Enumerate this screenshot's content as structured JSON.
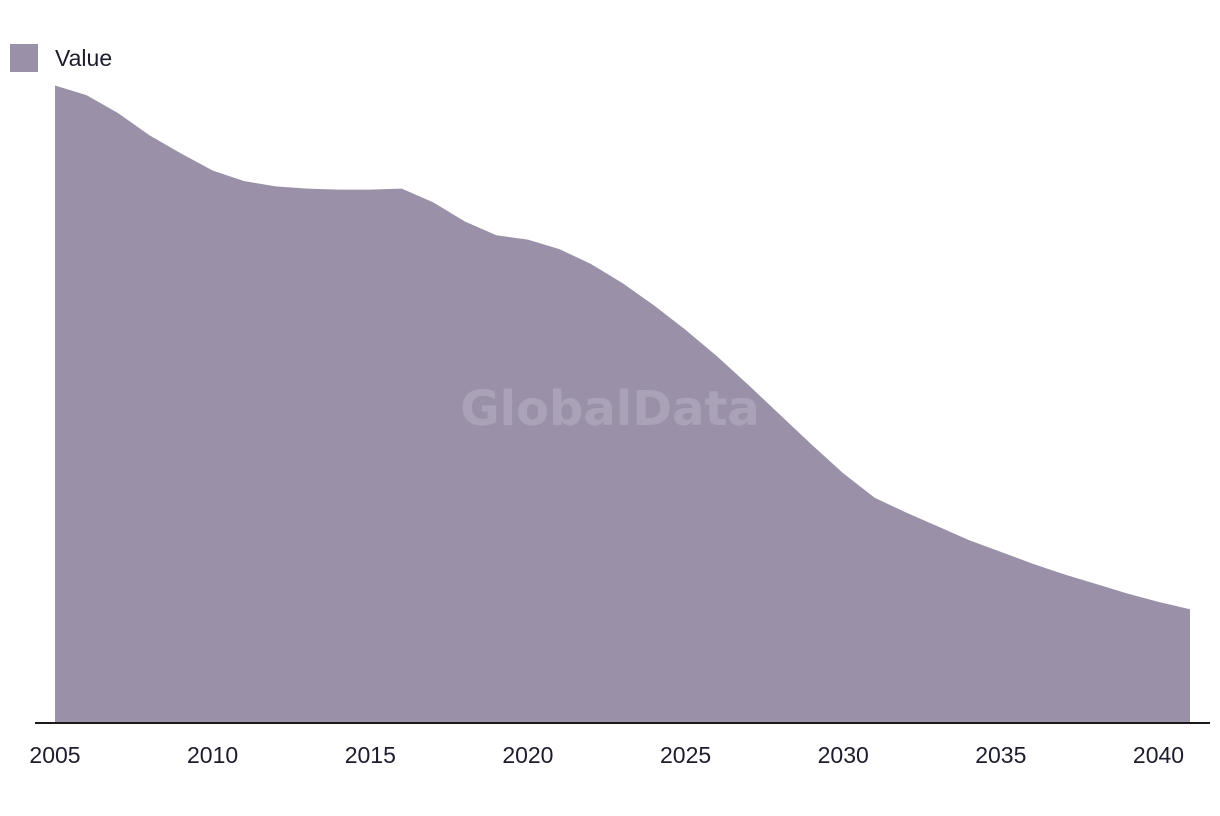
{
  "watermark": "GlobalData",
  "chart_data": {
    "type": "area",
    "title": "",
    "xlabel": "",
    "ylabel": "",
    "legend": {
      "position": "top-left",
      "entries": [
        "Value"
      ]
    },
    "grid": false,
    "xlim": [
      2005,
      2041
    ],
    "ylim": [
      0,
      640
    ],
    "x_ticks": [
      2005,
      2010,
      2015,
      2020,
      2025,
      2030,
      2035,
      2040
    ],
    "series": [
      {
        "name": "Value",
        "color": "#9a91a9",
        "x": [
          2005,
          2006,
          2007,
          2008,
          2009,
          2010,
          2011,
          2012,
          2013,
          2014,
          2015,
          2016,
          2017,
          2018,
          2019,
          2020,
          2021,
          2022,
          2023,
          2024,
          2025,
          2026,
          2027,
          2028,
          2029,
          2030,
          2031,
          2032,
          2033,
          2034,
          2035,
          2036,
          2037,
          2038,
          2039,
          2040,
          2041
        ],
        "values": [
          600,
          591,
          574,
          553,
          536,
          520,
          510,
          505,
          503,
          502,
          502,
          503,
          490,
          472,
          459,
          455,
          446,
          432,
          414,
          393,
          370,
          345,
          318,
          290,
          262,
          235,
          212,
          198,
          185,
          172,
          161,
          150,
          140,
          131,
          122,
          114,
          107
        ]
      }
    ]
  }
}
